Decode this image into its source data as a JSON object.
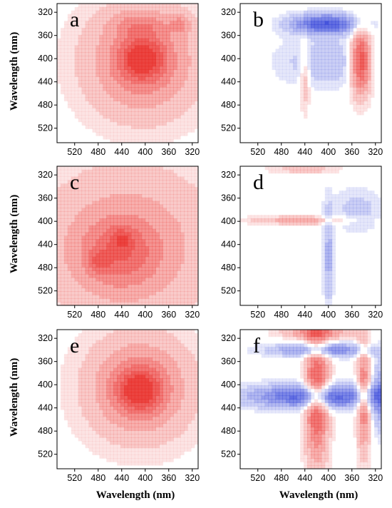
{
  "chart_data": [
    {
      "type": "heatmap",
      "panel": "a",
      "xticks": [
        "520",
        "480",
        "440",
        "400",
        "360",
        "320"
      ],
      "yticks": [
        "320",
        "360",
        "400",
        "440",
        "480",
        "520"
      ],
      "ylabel": "Wavelength (nm)",
      "xlabel": "",
      "x_axis_reversed": true,
      "y_axis_reversed": true,
      "colors": {
        "positive": "#e8231f",
        "negative": "#2637d6"
      },
      "blobs": [
        {
          "cx": 405,
          "cy": 405,
          "sx": 70,
          "sy": 70,
          "amp": 0.55
        },
        {
          "cx": 405,
          "cy": 400,
          "sx": 25,
          "sy": 25,
          "amp": 0.55
        },
        {
          "cx": 340,
          "cy": 340,
          "sx": 12,
          "sy": 12,
          "amp": 0.25
        },
        {
          "cx": 410,
          "cy": 340,
          "sx": 35,
          "sy": 14,
          "amp": 0.2
        }
      ]
    },
    {
      "type": "heatmap",
      "panel": "b",
      "xticks": [
        "520",
        "480",
        "440",
        "400",
        "360",
        "320"
      ],
      "yticks": [
        "320",
        "360",
        "400",
        "440",
        "480",
        "520"
      ],
      "ylabel": "",
      "xlabel": "",
      "x_axis_reversed": true,
      "y_axis_reversed": true,
      "colors": {
        "positive": "#e8231f",
        "negative": "#2637d6"
      },
      "blobs": [
        {
          "cx": 405,
          "cy": 340,
          "sx": 40,
          "sy": 12,
          "amp": -0.85
        },
        {
          "cx": 345,
          "cy": 405,
          "sx": 12,
          "sy": 40,
          "amp": 0.9
        },
        {
          "cx": 405,
          "cy": 405,
          "sx": 55,
          "sy": 30,
          "amp": -0.25
        },
        {
          "cx": 440,
          "cy": 430,
          "sx": 6,
          "sy": 40,
          "amp": 0.3
        }
      ]
    },
    {
      "type": "heatmap",
      "panel": "c",
      "xticks": [
        "520",
        "480",
        "440",
        "400",
        "360",
        "320"
      ],
      "yticks": [
        "320",
        "360",
        "400",
        "440",
        "480",
        "520"
      ],
      "ylabel": "Wavelength (nm)",
      "xlabel": "",
      "x_axis_reversed": true,
      "y_axis_reversed": true,
      "colors": {
        "positive": "#e8231f",
        "negative": "#2637d6"
      },
      "blobs": [
        {
          "cx": 430,
          "cy": 440,
          "sx": 110,
          "sy": 100,
          "amp": 0.4
        },
        {
          "cx": 445,
          "cy": 455,
          "sx": 45,
          "sy": 40,
          "amp": 0.35
        },
        {
          "cx": 480,
          "cy": 470,
          "sx": 12,
          "sy": 12,
          "amp": 0.25
        },
        {
          "cx": 440,
          "cy": 430,
          "sx": 12,
          "sy": 12,
          "amp": 0.25
        }
      ]
    },
    {
      "type": "heatmap",
      "panel": "d",
      "xticks": [
        "520",
        "480",
        "440",
        "400",
        "360",
        "320"
      ],
      "yticks": [
        "320",
        "360",
        "400",
        "440",
        "480",
        "520"
      ],
      "ylabel": "",
      "xlabel": "",
      "x_axis_reversed": true,
      "y_axis_reversed": true,
      "colors": {
        "positive": "#e8231f",
        "negative": "#2637d6"
      },
      "blobs": [
        {
          "cx": 450,
          "cy": 398,
          "sx": 60,
          "sy": 5,
          "amp": 0.35
        },
        {
          "cx": 400,
          "cy": 460,
          "sx": 6,
          "sy": 60,
          "amp": -0.35
        },
        {
          "cx": 350,
          "cy": 380,
          "sx": 30,
          "sy": 25,
          "amp": -0.2
        },
        {
          "cx": 440,
          "cy": 310,
          "sx": 40,
          "sy": 5,
          "amp": 0.25
        }
      ]
    },
    {
      "type": "heatmap",
      "panel": "e",
      "xticks": [
        "520",
        "480",
        "440",
        "400",
        "360",
        "320"
      ],
      "yticks": [
        "320",
        "360",
        "400",
        "440",
        "480",
        "520"
      ],
      "ylabel": "Wavelength (nm)",
      "xlabel": "Wavelength (nm)",
      "x_axis_reversed": true,
      "y_axis_reversed": true,
      "colors": {
        "positive": "#e8231f",
        "negative": "#2637d6"
      },
      "blobs": [
        {
          "cx": 410,
          "cy": 405,
          "sx": 65,
          "sy": 65,
          "amp": 0.55
        },
        {
          "cx": 410,
          "cy": 410,
          "sx": 25,
          "sy": 25,
          "amp": 0.55
        }
      ]
    },
    {
      "type": "heatmap",
      "panel": "f",
      "xticks": [
        "520",
        "480",
        "440",
        "400",
        "360",
        "320"
      ],
      "yticks": [
        "320",
        "360",
        "400",
        "440",
        "480",
        "520"
      ],
      "ylabel": "",
      "xlabel": "Wavelength (nm)",
      "x_axis_reversed": true,
      "y_axis_reversed": true,
      "colors": {
        "positive": "#e8231f",
        "negative": "#2637d6"
      },
      "blobs": [
        {
          "cx": 420,
          "cy": 420,
          "sx": 80,
          "sy": 14,
          "amp": -0.85
        },
        {
          "cx": 420,
          "cy": 420,
          "sx": 14,
          "sy": 80,
          "amp": 0.8
        },
        {
          "cx": 410,
          "cy": 340,
          "sx": 60,
          "sy": 8,
          "amp": -0.6
        },
        {
          "cx": 340,
          "cy": 420,
          "sx": 8,
          "sy": 70,
          "amp": 0.6
        },
        {
          "cx": 310,
          "cy": 420,
          "sx": 12,
          "sy": 40,
          "amp": -0.5
        },
        {
          "cx": 420,
          "cy": 310,
          "sx": 40,
          "sy": 8,
          "amp": 0.5
        }
      ]
    }
  ],
  "panels": {
    "a": {
      "label": "a"
    },
    "b": {
      "label": "b"
    },
    "c": {
      "label": "c"
    },
    "d": {
      "label": "d"
    },
    "e": {
      "label": "e"
    },
    "f": {
      "label": "f"
    }
  },
  "axis_title": "Wavelength (nm)"
}
